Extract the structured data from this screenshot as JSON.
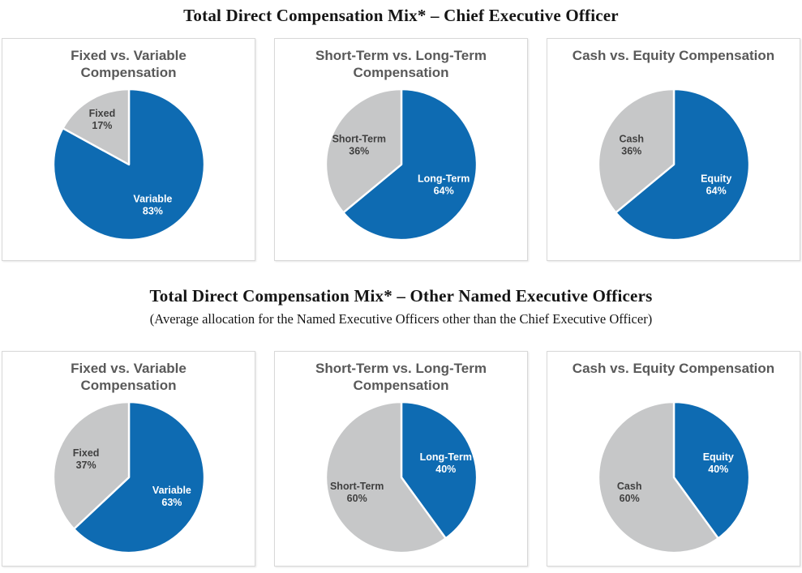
{
  "palette": {
    "blue": "#0e6bb2",
    "gray": "#c6c7c8",
    "label_on_blue": "#ffffff",
    "label_on_gray": "#404040",
    "slice_divider": "#ffffff",
    "panel_title_color": "#595959",
    "panel_border_color": "#d8d8d8"
  },
  "sections": [
    {
      "title": "Total Direct Compensation Mix* – Chief Executive Officer",
      "subtitle": ""
    },
    {
      "title": "Total Direct Compensation Mix* – Other Named Executive Officers",
      "subtitle": "(Average allocation for the Named Executive Officers other than the Chief Executive Officer)"
    }
  ],
  "chart_data": [
    {
      "type": "pie",
      "group": "Chief Executive Officer",
      "title": "Fixed vs. Variable Compensation",
      "start_angle_deg": 0,
      "direction": "clockwise",
      "slices": [
        {
          "label": "Variable",
          "value": 83,
          "color": "#0e6bb2",
          "text_color": "#ffffff"
        },
        {
          "label": "Fixed",
          "value": 17,
          "color": "#c6c7c8",
          "text_color": "#404040"
        }
      ]
    },
    {
      "type": "pie",
      "group": "Chief Executive Officer",
      "title": "Short-Term vs. Long-Term Compensation",
      "start_angle_deg": 0,
      "direction": "clockwise",
      "slices": [
        {
          "label": "Long-Term",
          "value": 64,
          "color": "#0e6bb2",
          "text_color": "#ffffff"
        },
        {
          "label": "Short-Term",
          "value": 36,
          "color": "#c6c7c8",
          "text_color": "#404040"
        }
      ]
    },
    {
      "type": "pie",
      "group": "Chief Executive Officer",
      "title": "Cash vs. Equity Compensation",
      "start_angle_deg": 0,
      "direction": "clockwise",
      "slices": [
        {
          "label": "Equity",
          "value": 64,
          "color": "#0e6bb2",
          "text_color": "#ffffff"
        },
        {
          "label": "Cash",
          "value": 36,
          "color": "#c6c7c8",
          "text_color": "#404040"
        }
      ]
    },
    {
      "type": "pie",
      "group": "Other Named Executive Officers",
      "title": "Fixed vs. Variable Compensation",
      "start_angle_deg": 0,
      "direction": "clockwise",
      "slices": [
        {
          "label": "Variable",
          "value": 63,
          "color": "#0e6bb2",
          "text_color": "#ffffff"
        },
        {
          "label": "Fixed",
          "value": 37,
          "color": "#c6c7c8",
          "text_color": "#404040"
        }
      ]
    },
    {
      "type": "pie",
      "group": "Other Named Executive Officers",
      "title": "Short-Term vs. Long-Term Compensation",
      "start_angle_deg": 0,
      "direction": "clockwise",
      "slices": [
        {
          "label": "Long-Term",
          "value": 40,
          "color": "#0e6bb2",
          "text_color": "#ffffff"
        },
        {
          "label": "Short-Term",
          "value": 60,
          "color": "#c6c7c8",
          "text_color": "#404040"
        }
      ]
    },
    {
      "type": "pie",
      "group": "Other Named Executive Officers",
      "title": "Cash vs. Equity Compensation",
      "start_angle_deg": 0,
      "direction": "clockwise",
      "slices": [
        {
          "label": "Equity",
          "value": 40,
          "color": "#0e6bb2",
          "text_color": "#ffffff"
        },
        {
          "label": "Cash",
          "value": 60,
          "color": "#c6c7c8",
          "text_color": "#404040"
        }
      ]
    }
  ]
}
